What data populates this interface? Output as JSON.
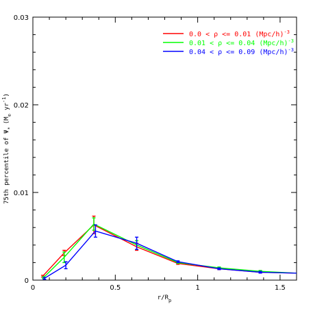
{
  "chart_data": {
    "type": "line",
    "title": "",
    "xlabel": "r/R",
    "xlabel_sub": "p",
    "ylabel": "75th percentile of Ψ",
    "ylabel_sub": "*",
    "ylabel_units": "(M",
    "ylabel_units_sub": "⊙",
    "ylabel_units_rest": " yr",
    "ylabel_units_sup": "-1",
    "ylabel_close": ")",
    "xlim": [
      0,
      1.6
    ],
    "ylim": [
      0,
      0.03
    ],
    "xticks": [
      0,
      0.5,
      1,
      1.5
    ],
    "xtick_labels": [
      "0",
      "0.5",
      "1",
      "1.5"
    ],
    "yticks": [
      0,
      0.01,
      0.02,
      0.03
    ],
    "ytick_labels": [
      "0",
      "0.01",
      "0.02",
      "0.03"
    ],
    "grid": false,
    "legend_position": "top-right",
    "series": [
      {
        "name": "0.0 < ρ <= 0.01  (Mpc/h)",
        "name_sup": "-3",
        "color": "#ff0000",
        "x": [
          0.06,
          0.19,
          0.37,
          0.63,
          0.88,
          1.13,
          1.38,
          1.6
        ],
        "y": [
          0.00045,
          0.0031,
          0.0063,
          0.0038,
          0.0019,
          0.0013,
          0.0009,
          0.0008
        ],
        "err": [
          0.0001,
          0.0003,
          0.001,
          0.0004,
          0.0001,
          0.0001,
          0.0001,
          0.0
        ]
      },
      {
        "name": "0.01 < ρ <= 0.04  (Mpc/h)",
        "name_sup": "-3",
        "color": "#00ff00",
        "x": [
          0.065,
          0.19,
          0.37,
          0.63,
          0.88,
          1.13,
          1.38,
          1.6
        ],
        "y": [
          0.0003,
          0.0026,
          0.0064,
          0.004,
          0.002,
          0.0014,
          0.001,
          0.0008
        ],
        "err": [
          0.0001,
          0.0006,
          0.0007,
          0.0005,
          0.0001,
          0.0001,
          0.0001,
          0.0
        ]
      },
      {
        "name": "0.04 < ρ <= 0.09  (Mpc/h)",
        "name_sup": "-3",
        "color": "#0000ff",
        "x": [
          0.07,
          0.2,
          0.38,
          0.63,
          0.88,
          1.13,
          1.38,
          1.6
        ],
        "y": [
          0.0002,
          0.0017,
          0.0056,
          0.0042,
          0.0021,
          0.0013,
          0.0009,
          0.0008
        ],
        "err": [
          0.0001,
          0.0004,
          0.0007,
          0.0007,
          0.0001,
          0.0001,
          0.0001,
          0.0
        ]
      }
    ]
  }
}
